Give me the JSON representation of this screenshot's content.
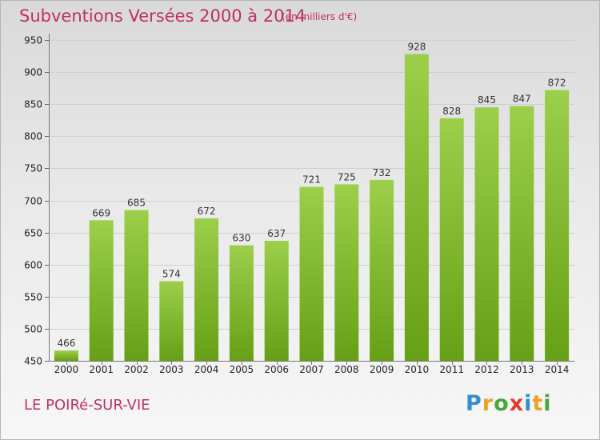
{
  "header": {
    "title": "Subventions Versées 2000 à 2014",
    "unit_note": "(en milliers d'€)"
  },
  "footer": {
    "commune": "LE POIRé-SUR-VIE",
    "logo_text": "Proxiti"
  },
  "colors": {
    "title": "#c0305f",
    "bar_light": "#9ccf4a",
    "bar_dark": "#66a016",
    "grid": "#cfcfcf"
  },
  "chart_data": {
    "type": "bar",
    "categories": [
      "2000",
      "2001",
      "2002",
      "2003",
      "2004",
      "2005",
      "2006",
      "2007",
      "2008",
      "2009",
      "2010",
      "2011",
      "2012",
      "2013",
      "2014"
    ],
    "values": [
      466,
      669,
      685,
      574,
      672,
      630,
      637,
      721,
      725,
      732,
      928,
      828,
      845,
      847,
      872
    ],
    "ylim": [
      450,
      950
    ],
    "yticks": [
      450,
      500,
      550,
      600,
      650,
      700,
      750,
      800,
      850,
      900,
      950
    ],
    "grid": true,
    "data_labels": true
  }
}
